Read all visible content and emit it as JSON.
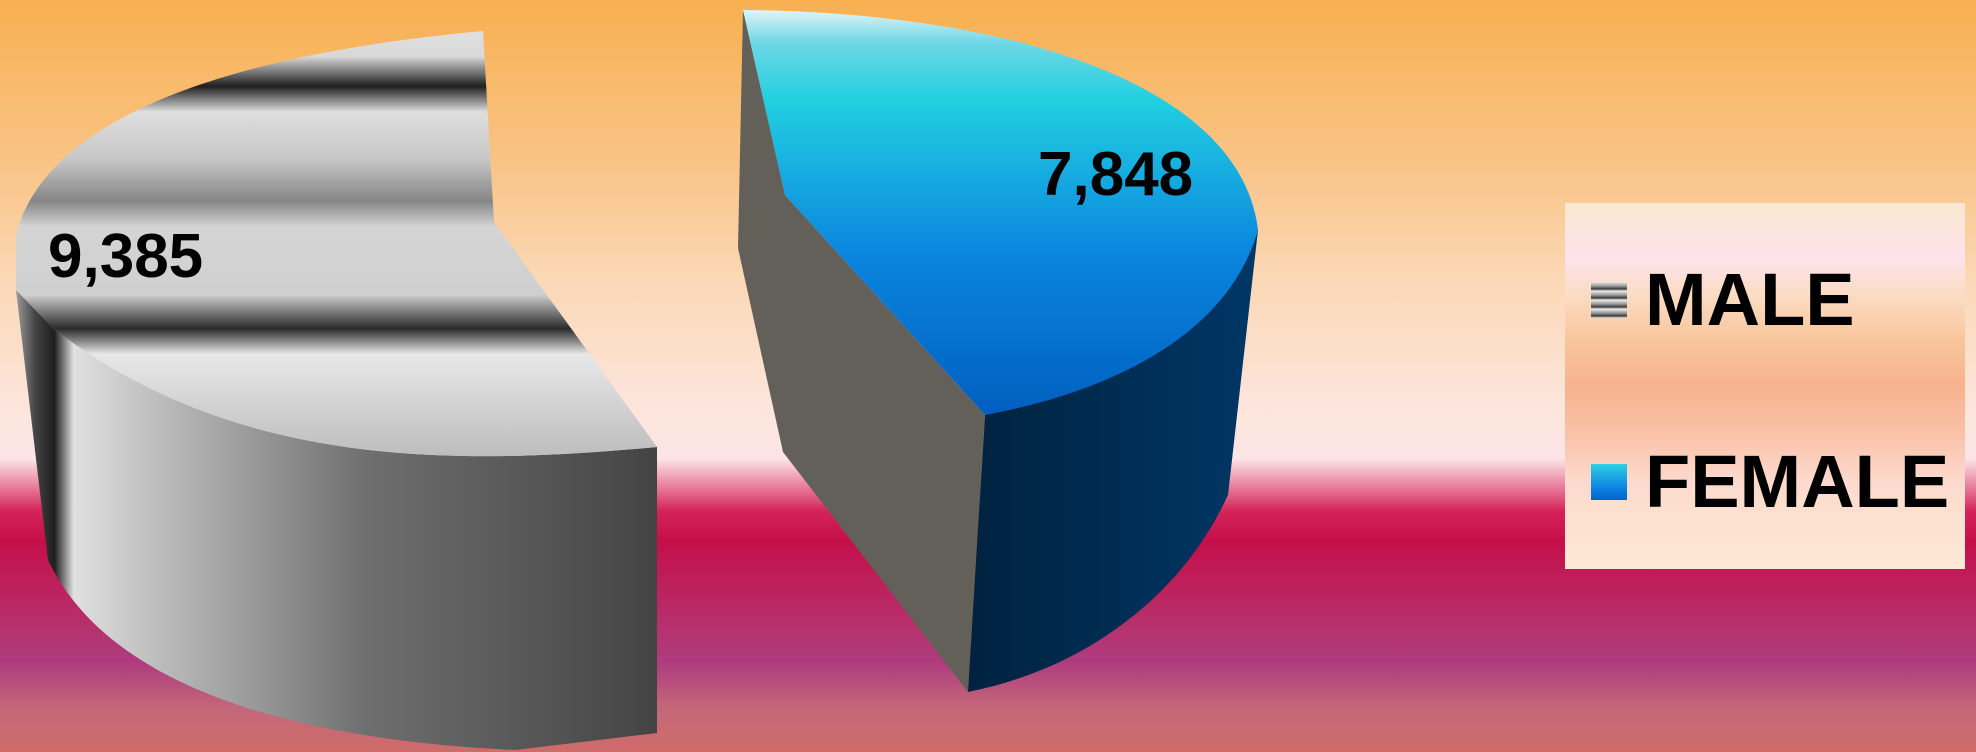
{
  "chart_data": {
    "type": "pie",
    "categories": [
      "MALE",
      "FEMALE"
    ],
    "values": [
      9385,
      7848
    ],
    "data_labels": [
      "9,385",
      "7,848"
    ],
    "legend": {
      "position": "right",
      "items": [
        {
          "label": "MALE",
          "style": "gray-striped"
        },
        {
          "label": "FEMALE",
          "color": "#0a8ae0"
        }
      ]
    },
    "style": "3d-exploded"
  },
  "colors": {
    "male_top_light": "#d4d4d4",
    "male_top_dark": "#2a2a2a",
    "male_side_light": "#bdbdbd",
    "male_side_dark": "#444444",
    "female_top_light": "#22d4e0",
    "female_top_dark": "#0060c0",
    "female_side": "#00284e",
    "cut_face": "#636059"
  }
}
